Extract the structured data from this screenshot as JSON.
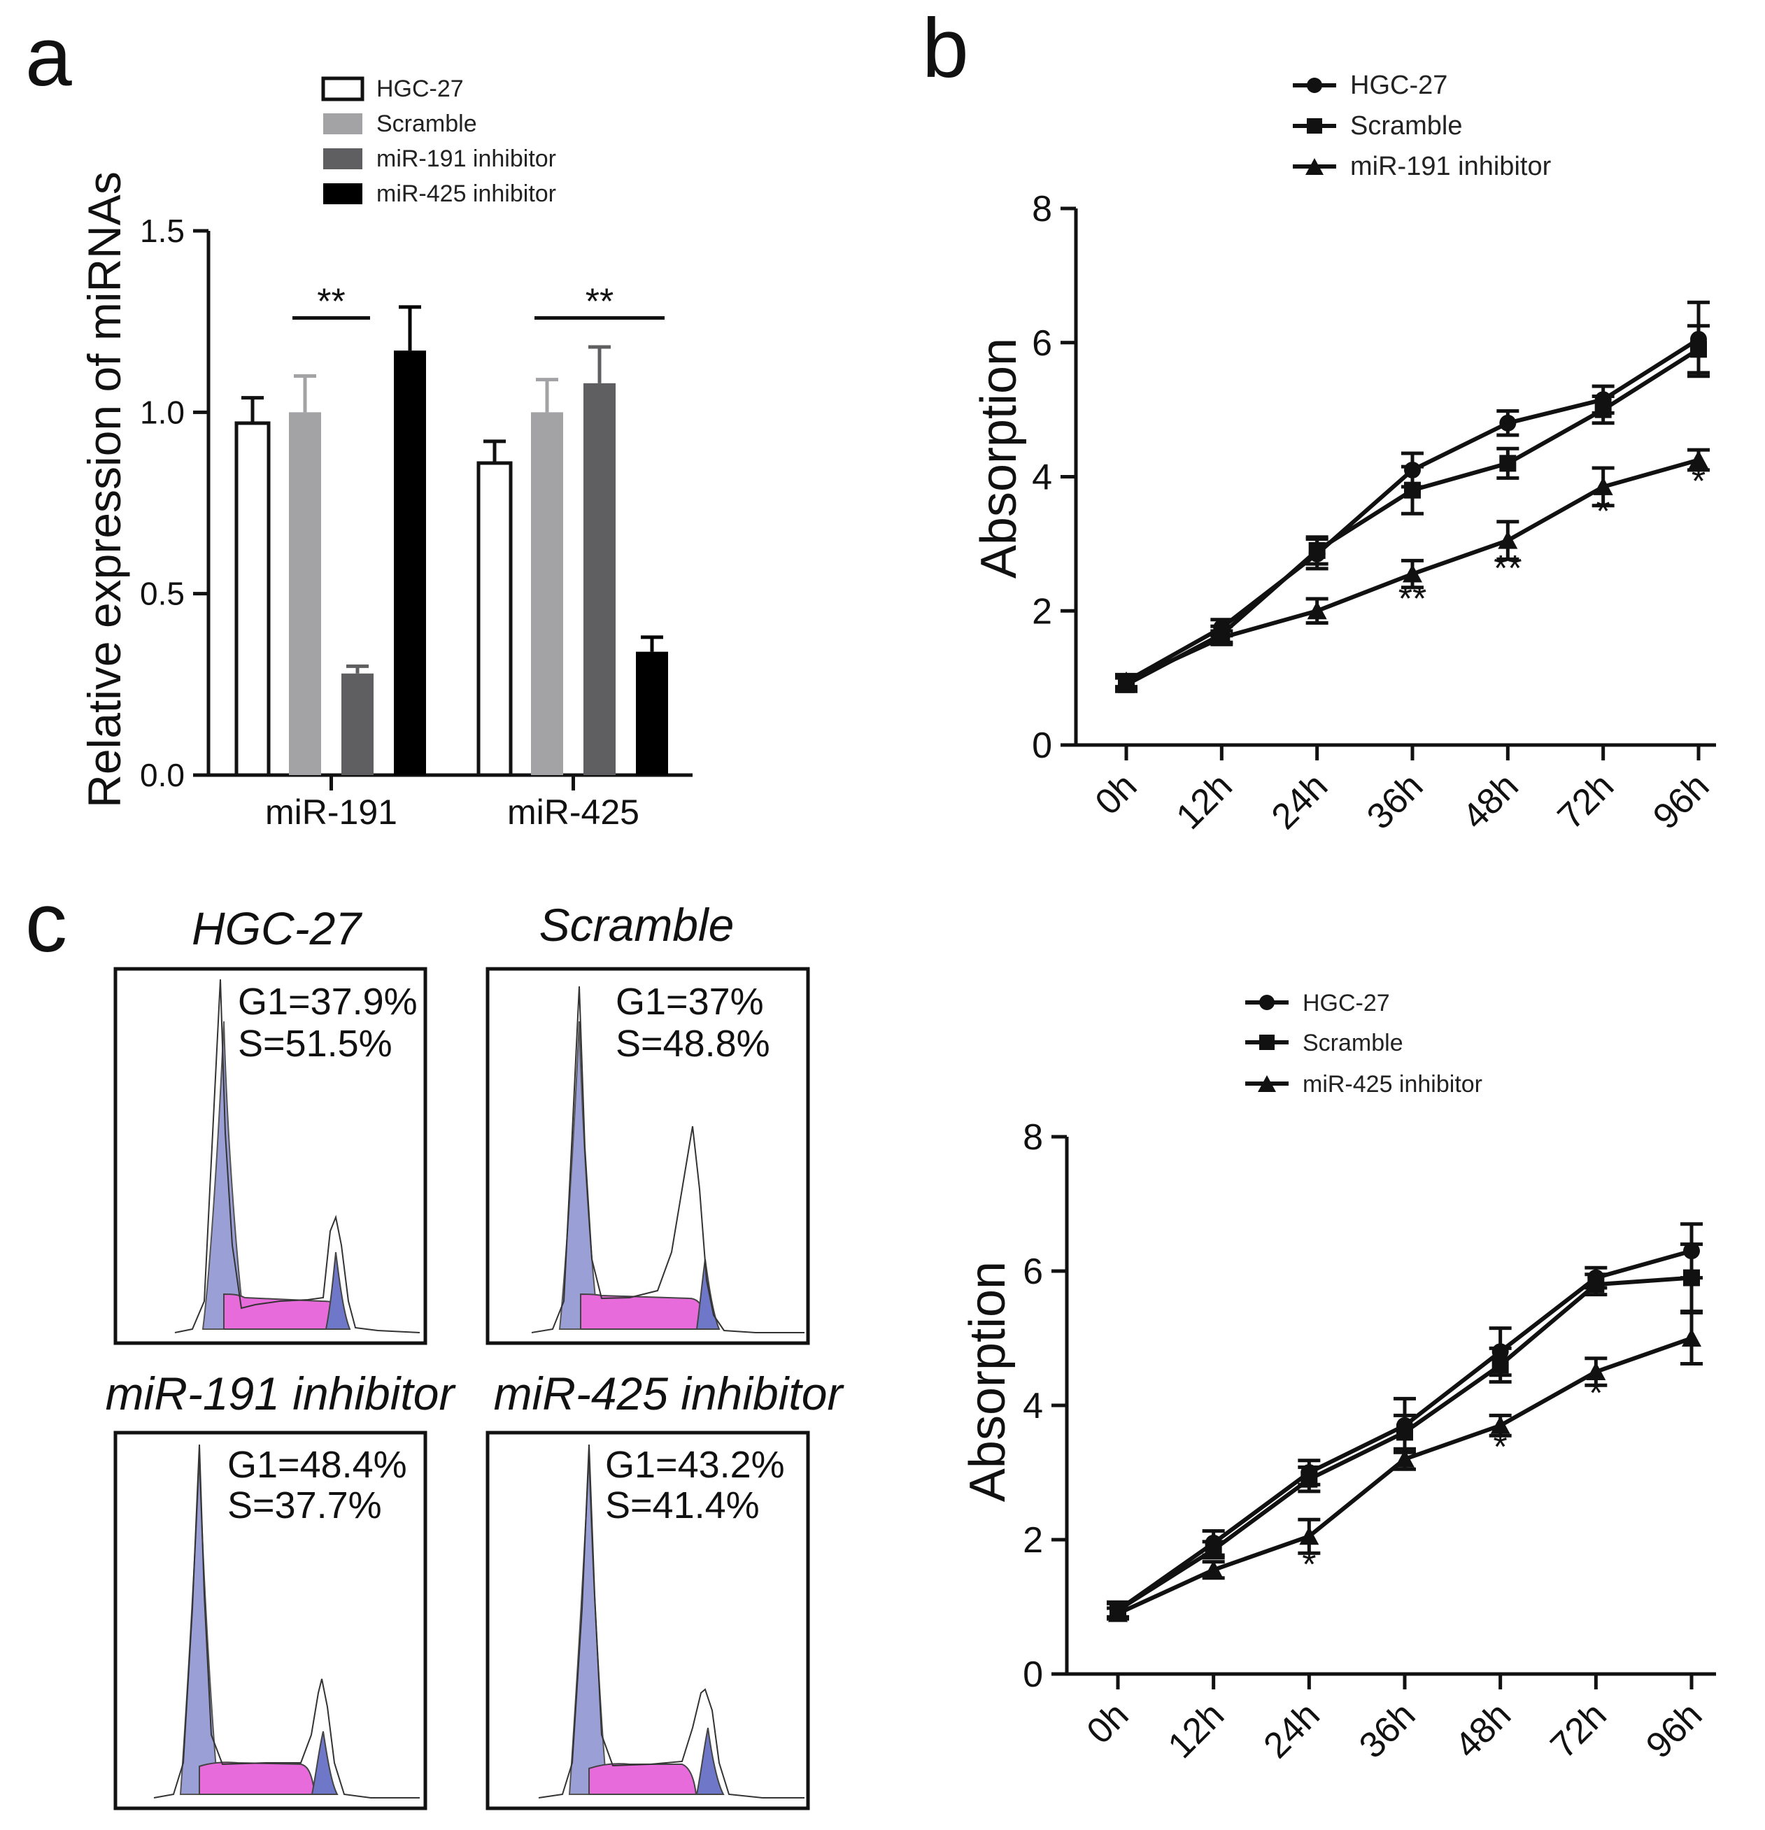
{
  "colors": {
    "ink": "#111111",
    "bar_hgc27": "#ffffff",
    "bar_scramble": "#a3a3a6",
    "bar_mir191": "#5f5f61",
    "bar_mir425": "#000000",
    "g1_fill": "#9aa0d6",
    "s_fill": "#e86bdc",
    "g2_fill": "#6f78c8"
  },
  "panels": {
    "a": "a",
    "b": "b",
    "c": "c"
  },
  "chart_data": [
    {
      "id": "a",
      "type": "bar",
      "ylabel": "Relative expression of miRNAs",
      "xlabel": "",
      "ylim": [
        0,
        1.5
      ],
      "yticks": [
        "0.0",
        "0.5",
        "1.0",
        "1.5"
      ],
      "categories": [
        "miR-191",
        "miR-425"
      ],
      "series": [
        {
          "name": "HGC-27",
          "values": [
            0.97,
            0.86
          ],
          "errors": [
            0.07,
            0.06
          ]
        },
        {
          "name": "Scramble",
          "values": [
            1.0,
            1.0
          ],
          "errors": [
            0.1,
            0.09
          ]
        },
        {
          "name": "miR-191 inhibitor",
          "values": [
            0.28,
            1.08
          ],
          "errors": [
            0.02,
            0.1
          ]
        },
        {
          "name": "miR-425 inhibitor",
          "values": [
            1.17,
            0.34
          ],
          "errors": [
            0.12,
            0.04
          ]
        }
      ],
      "annotations": [
        {
          "text": "**",
          "category": 0,
          "from_series": 1,
          "to_series": 2,
          "y": 1.26
        },
        {
          "text": "**",
          "category": 1,
          "from_series": 1,
          "to_series": 3,
          "y": 1.26
        }
      ]
    },
    {
      "id": "b",
      "type": "line",
      "ylabel": "Absorption",
      "xlabel": "",
      "ylim": [
        0,
        8
      ],
      "yticks": [
        "0",
        "2",
        "4",
        "6",
        "8"
      ],
      "categories": [
        "0h",
        "12h",
        "24h",
        "36h",
        "48h",
        "72h",
        "96h"
      ],
      "series": [
        {
          "name": "HGC-27",
          "marker": "circle",
          "values": [
            0.95,
            1.75,
            2.85,
            4.1,
            4.8,
            5.15,
            6.05
          ],
          "errors": [
            0.1,
            0.12,
            0.22,
            0.25,
            0.18,
            0.2,
            0.55
          ]
        },
        {
          "name": "Scramble",
          "marker": "square",
          "values": [
            0.9,
            1.65,
            2.9,
            3.8,
            4.2,
            5.0,
            5.9
          ],
          "errors": [
            0.1,
            0.12,
            0.2,
            0.35,
            0.22,
            0.2,
            0.35
          ]
        },
        {
          "name": "miR-191 inhibitor",
          "marker": "triangle",
          "values": [
            0.95,
            1.6,
            2.0,
            2.55,
            3.05,
            3.85,
            4.25
          ],
          "errors": [
            0.08,
            0.1,
            0.18,
            0.2,
            0.28,
            0.28,
            0.15
          ]
        }
      ],
      "annotations": [
        {
          "text": "**",
          "index": 3,
          "y": 2.0
        },
        {
          "text": "**",
          "index": 4,
          "y": 2.45
        },
        {
          "text": "*",
          "index": 5,
          "y": 3.3
        },
        {
          "text": "*",
          "index": 6,
          "y": 3.75
        }
      ]
    },
    {
      "id": "b2",
      "type": "line",
      "ylabel": "Absorption",
      "xlabel": "",
      "ylim": [
        0,
        8
      ],
      "yticks": [
        "0",
        "2",
        "4",
        "6",
        "8"
      ],
      "categories": [
        "0h",
        "12h",
        "24h",
        "36h",
        "48h",
        "72h",
        "96h"
      ],
      "series": [
        {
          "name": "HGC-27",
          "marker": "circle",
          "values": [
            0.95,
            1.95,
            3.0,
            3.7,
            4.8,
            5.9,
            6.3
          ],
          "errors": [
            0.12,
            0.18,
            0.18,
            0.4,
            0.35,
            0.15,
            0.4
          ]
        },
        {
          "name": "Scramble",
          "marker": "square",
          "values": [
            0.95,
            1.85,
            2.9,
            3.6,
            4.6,
            5.8,
            5.9
          ],
          "errors": [
            0.1,
            0.12,
            0.18,
            0.25,
            0.25,
            0.15,
            0.5
          ]
        },
        {
          "name": "miR-425 inhibitor",
          "marker": "triangle",
          "values": [
            0.9,
            1.55,
            2.05,
            3.2,
            3.7,
            4.5,
            5.0
          ],
          "errors": [
            0.08,
            0.12,
            0.25,
            0.15,
            0.15,
            0.2,
            0.38
          ]
        }
      ],
      "annotations": [
        {
          "text": "*",
          "index": 2,
          "y": 1.45
        },
        {
          "text": "*",
          "index": 4,
          "y": 3.2
        },
        {
          "text": "*",
          "index": 5,
          "y": 4.0
        }
      ]
    }
  ],
  "histograms": [
    {
      "title": "HGC-27",
      "g1": "G1=37.9%",
      "s": "S=51.5%"
    },
    {
      "title": "Scramble",
      "g1": "G1=37%",
      "s": "S=48.8%"
    },
    {
      "title": "miR-191 inhibitor",
      "g1": "G1=48.4%",
      "s": "S=37.7%"
    },
    {
      "title": "miR-425 inhibitor",
      "g1": "G1=43.2%",
      "s": "S=41.4%"
    }
  ]
}
